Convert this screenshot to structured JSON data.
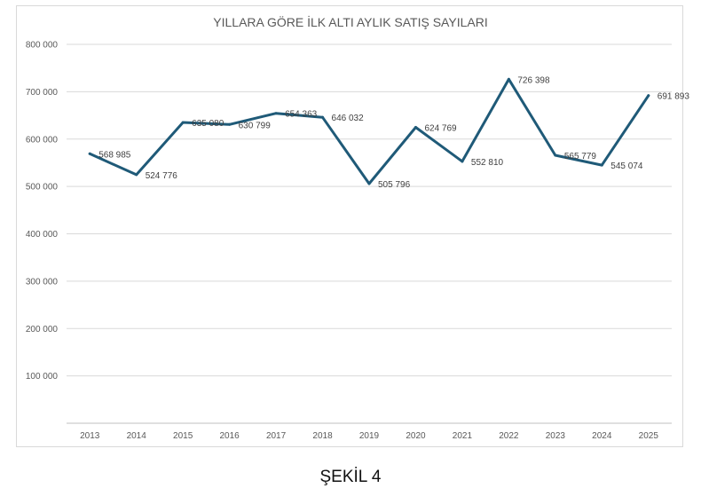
{
  "chart_data": {
    "type": "line",
    "title": "YILLARA GÖRE İLK ALTI AYLIK SATIŞ SAYILARI",
    "categories": [
      "2013",
      "2014",
      "2015",
      "2016",
      "2017",
      "2018",
      "2019",
      "2020",
      "2021",
      "2022",
      "2023",
      "2024",
      "2025"
    ],
    "series": [
      {
        "values": [
          568985,
          524776,
          635080,
          630799,
          654363,
          646032,
          505796,
          624769,
          552810,
          726398,
          565779,
          545074,
          691893
        ],
        "labels": [
          "568 985",
          "524 776",
          "635 080",
          "630 799",
          "654 363",
          "646 032",
          "505 796",
          "624 769",
          "552 810",
          "726 398",
          "565 779",
          "545 074",
          "691 893"
        ]
      }
    ],
    "ylim": [
      0,
      800000
    ],
    "yticks": [
      0,
      100000,
      200000,
      300000,
      400000,
      500000,
      600000,
      700000,
      800000
    ],
    "ytick_labels": [
      "",
      "100 000",
      "200 000",
      "300 000",
      "400 000",
      "500 000",
      "600 000",
      "700 000",
      "800 000"
    ],
    "grid": true,
    "line_color": "#1f5a78"
  },
  "caption": "ŞEKİL 4"
}
